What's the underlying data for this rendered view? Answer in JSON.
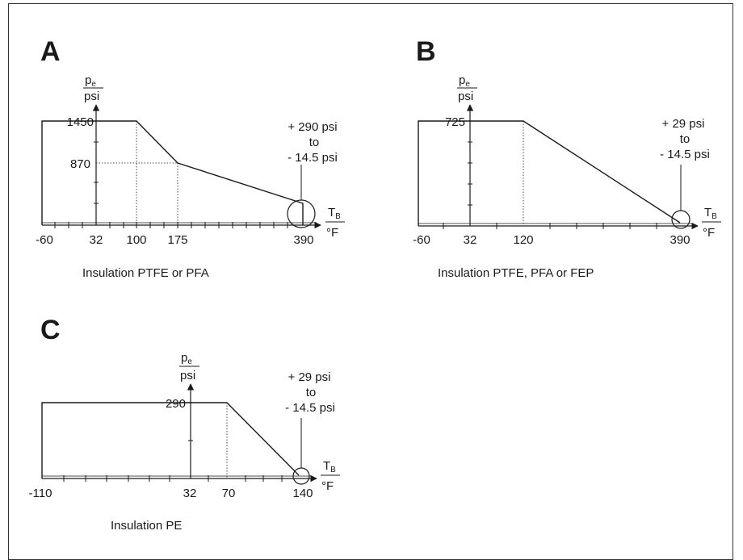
{
  "charts": [
    {
      "letter": "A",
      "caption": "Insulation PTFE or PFA",
      "y_unit_top": "p",
      "y_unit_sub": "e",
      "y_unit_bottom": "psi",
      "x_unit_top": "T",
      "x_unit_sub": "B",
      "x_unit_bottom": "°F",
      "y_tick_labels": [
        "1450",
        "870"
      ],
      "x_tick_labels": [
        "-60",
        "32",
        "100",
        "175",
        "390"
      ],
      "note_lines": [
        "+ 290 psi",
        "to",
        "- 14.5 psi"
      ]
    },
    {
      "letter": "B",
      "caption": "Insulation PTFE, PFA or FEP",
      "y_unit_top": "p",
      "y_unit_sub": "e",
      "y_unit_bottom": "psi",
      "x_unit_top": "T",
      "x_unit_sub": "B",
      "x_unit_bottom": "°F",
      "y_tick_labels": [
        "725"
      ],
      "x_tick_labels": [
        "-60",
        "32",
        "120",
        "390"
      ],
      "note_lines": [
        "+ 29 psi",
        "to",
        "- 14.5 psi"
      ]
    },
    {
      "letter": "C",
      "caption": "Insulation PE",
      "y_unit_top": "p",
      "y_unit_sub": "e",
      "y_unit_bottom": "psi",
      "x_unit_top": "T",
      "x_unit_sub": "B",
      "x_unit_bottom": "°F",
      "y_tick_labels": [
        "290"
      ],
      "x_tick_labels": [
        "-110",
        "32",
        "70",
        "140"
      ],
      "note_lines": [
        "+ 29 psi",
        "to",
        "- 14.5 psi"
      ]
    }
  ]
}
